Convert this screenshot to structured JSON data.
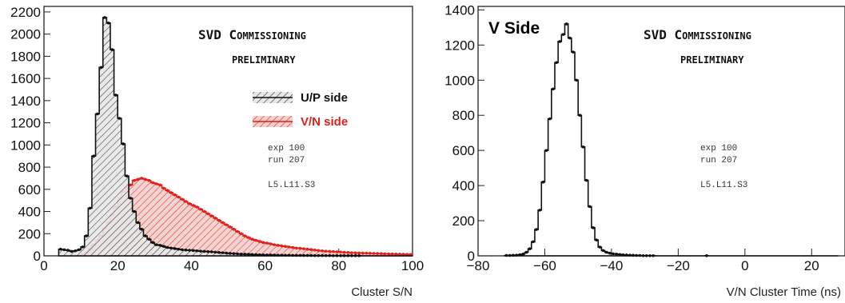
{
  "chart_data": [
    {
      "type": "histogram",
      "xlabel": "Cluster S/N",
      "ylabel": "",
      "xlim": [
        0,
        100
      ],
      "ylim": [
        0,
        2250
      ],
      "x_ticks": [
        "0",
        "20",
        "40",
        "60",
        "80",
        "100"
      ],
      "y_ticks": [
        "0",
        "200",
        "400",
        "600",
        "800",
        "1000",
        "1200",
        "1400",
        "1600",
        "1800",
        "2000",
        "2200"
      ],
      "bin_width": 1,
      "x_start": 4,
      "annotations": {
        "title_line1_s": "SVD C",
        "title_line1_b": "OMMISSIONING",
        "title_line2": "PRELIMINARY",
        "exp": "exp 100",
        "run": "run 207",
        "sensor": "L5.L11.S3"
      },
      "series": [
        {
          "name": "U/P side",
          "color": "#111111",
          "values": [
            60,
            55,
            50,
            40,
            45,
            55,
            80,
            180,
            430,
            900,
            1280,
            1700,
            2150,
            2100,
            1860,
            1450,
            1240,
            1010,
            720,
            520,
            400,
            300,
            240,
            180,
            150,
            120,
            100,
            95,
            85,
            75,
            70,
            65,
            60,
            55,
            52,
            50,
            48,
            45,
            42,
            40,
            38,
            36,
            33,
            30,
            28,
            25,
            22,
            20,
            18,
            16,
            15,
            14,
            12,
            11,
            10,
            9,
            8,
            8,
            7,
            6,
            6,
            5,
            5,
            4,
            4,
            4,
            3,
            3,
            3,
            2,
            2,
            2,
            2,
            2,
            1,
            1,
            1,
            1,
            1,
            1,
            1,
            1,
            0,
            0,
            0,
            0,
            0,
            0,
            0,
            0,
            0,
            0,
            0,
            0,
            0,
            0
          ]
        },
        {
          "name": "V/N side",
          "color": "#e0201a",
          "values": [
            0,
            0,
            0,
            0,
            0,
            0,
            10,
            30,
            60,
            100,
            140,
            180,
            250,
            300,
            370,
            440,
            520,
            580,
            610,
            640,
            680,
            690,
            700,
            690,
            680,
            660,
            650,
            640,
            610,
            590,
            570,
            550,
            530,
            510,
            490,
            470,
            455,
            440,
            420,
            400,
            380,
            360,
            340,
            320,
            300,
            280,
            260,
            240,
            220,
            200,
            180,
            165,
            150,
            140,
            130,
            120,
            115,
            108,
            100,
            95,
            90,
            85,
            80,
            75,
            70,
            68,
            64,
            60,
            56,
            52,
            48,
            45,
            42,
            40,
            38,
            36,
            34,
            32,
            30,
            28,
            27,
            26,
            25,
            24,
            23,
            22,
            21,
            20,
            19,
            18,
            17,
            16,
            15,
            14,
            13,
            12
          ]
        }
      ]
    },
    {
      "type": "histogram",
      "xlabel": "V/N Cluster Time (ns)",
      "ylabel": "",
      "xlim": [
        -80,
        30
      ],
      "ylim": [
        0,
        1420
      ],
      "x_ticks": [
        "−80",
        "−60",
        "−40",
        "−20",
        "0",
        "20"
      ],
      "y_ticks": [
        "0",
        "200",
        "400",
        "600",
        "800",
        "1000",
        "1200",
        "1400"
      ],
      "bin_width": 1,
      "x_start": -72,
      "annotations": {
        "label": "V Side",
        "title_line1_s": "SVD C",
        "title_line1_b": "OMMISSIONING",
        "title_line2": "PRELIMINARY",
        "exp": "exp 100",
        "run": "run 207",
        "sensor": "L5.L11.S3"
      },
      "series": [
        {
          "name": "",
          "color": "#111111",
          "values": [
            2,
            2,
            3,
            4,
            6,
            10,
            20,
            40,
            80,
            150,
            260,
            420,
            600,
            780,
            950,
            1100,
            1220,
            1260,
            1320,
            1240,
            1160,
            1000,
            800,
            620,
            430,
            280,
            160,
            90,
            50,
            30,
            20,
            15,
            12,
            10,
            8,
            6,
            5,
            4,
            3,
            2,
            2,
            1,
            1,
            1,
            1,
            0,
            0,
            0,
            0,
            0,
            0,
            0,
            0,
            0,
            0,
            0,
            0,
            0,
            0,
            0,
            1,
            0,
            0,
            0,
            0,
            0,
            0,
            0,
            0,
            0,
            0,
            0,
            0,
            0,
            0,
            0,
            0,
            0,
            0,
            0,
            0,
            0,
            0,
            0,
            0,
            0,
            0,
            0,
            0,
            0,
            0,
            0,
            0,
            0,
            0,
            0,
            0,
            0,
            0,
            0
          ]
        }
      ]
    }
  ]
}
